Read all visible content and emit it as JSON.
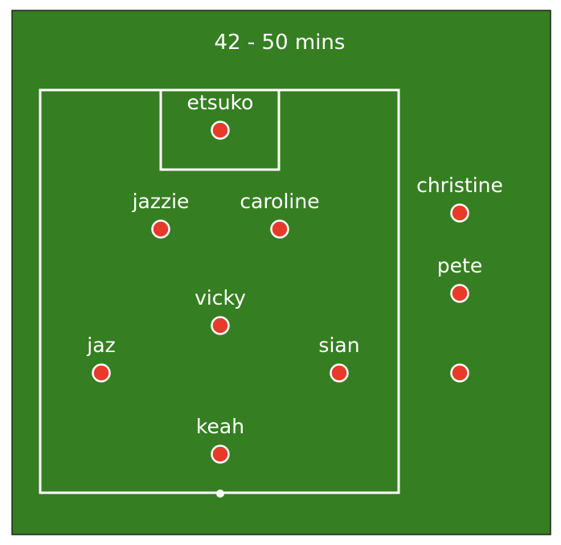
{
  "title": "42 - 50 mins",
  "colors": {
    "pitch": "#367e22",
    "line": "#ffffff",
    "player": "#e83a2a"
  },
  "players": [
    {
      "id": "etsuko",
      "name": "etsuko"
    },
    {
      "id": "jazzie",
      "name": "jazzie"
    },
    {
      "id": "caroline",
      "name": "caroline"
    },
    {
      "id": "vicky",
      "name": "vicky"
    },
    {
      "id": "jaz",
      "name": "jaz"
    },
    {
      "id": "sian",
      "name": "sian"
    },
    {
      "id": "keah",
      "name": "keah"
    },
    {
      "id": "christine",
      "name": "christine"
    },
    {
      "id": "pete",
      "name": "pete"
    },
    {
      "id": "bench-3",
      "name": ""
    }
  ]
}
